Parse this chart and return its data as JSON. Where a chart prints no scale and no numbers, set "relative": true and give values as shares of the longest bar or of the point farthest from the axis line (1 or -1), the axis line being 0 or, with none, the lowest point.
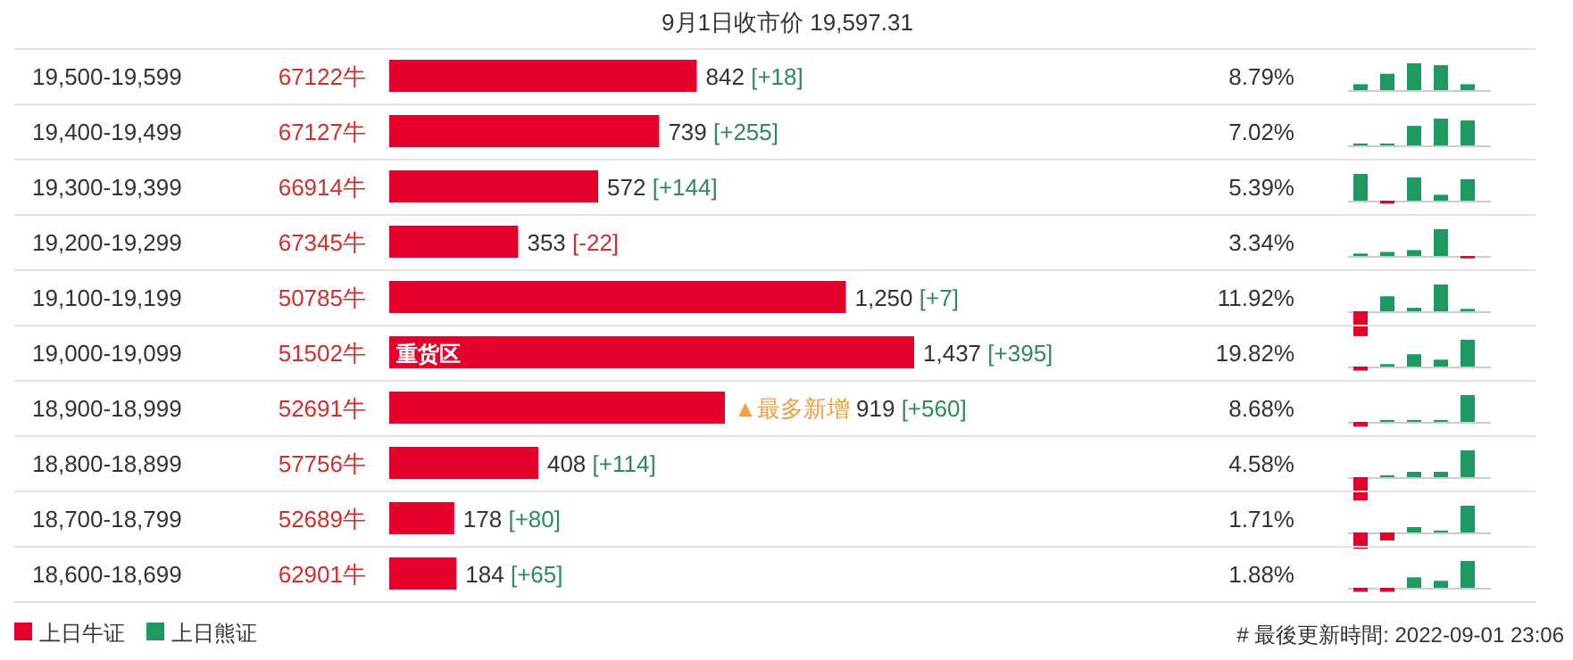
{
  "chart_data": [
    {
      "type": "other",
      "annotations": [
        "67122牛",
        "67127牛",
        "66914牛",
        "67345牛",
        "50785牛",
        "51502牛",
        "52691牛",
        "57756牛",
        "52689牛",
        "62901牛"
      ]
    },
    {
      "type": "bar",
      "orientation": "horizontal",
      "title": "9月1日收市价 19,597.31",
      "categories": [
        "19,500-19,599",
        "19,400-19,499",
        "19,300-19,399",
        "19,200-19,299",
        "19,100-19,199",
        "19,000-19,099",
        "18,900-18,999",
        "18,800-18,899",
        "18,700-18,799",
        "18,600-18,699"
      ],
      "values": [
        842,
        739,
        572,
        353,
        1250,
        1437,
        919,
        408,
        178,
        184
      ],
      "color": "#e4002b",
      "value_labels": [
        "842 [+18]",
        "739 [+255]",
        "572 [+144]",
        "353 [-22]",
        "1,250 [+7]",
        "1,437 [+395]",
        "▲最多新增 919 [+560]",
        "408 [+114]",
        "178 [+80]",
        "184 [+65]"
      ],
      "annotations": [
        {
          "text": "重货区",
          "x": 0,
          "y": "19,000-19,099"
        },
        "# 最後更新時間: 2022-09-01 23:06"
      ]
    },
    {
      "type": "other",
      "annotations": [
        "8.79%",
        "7.02%",
        "5.39%",
        "3.34%",
        "11.92%",
        "19.82%",
        "8.68%",
        "4.58%",
        "1.71%",
        "1.88%"
      ]
    },
    {
      "type": "bar",
      "relative": true,
      "categories": [
        null,
        null,
        null,
        null,
        null
      ],
      "values": [
        0.22,
        0.61,
        1,
        0.93,
        0.22
      ],
      "colors": [
        "#1e9960",
        "#1e9960",
        "#1e9960",
        "#1e9960",
        "#1e9960"
      ]
    },
    {
      "type": "bar",
      "relative": true,
      "categories": [
        null,
        null,
        null,
        null,
        null
      ],
      "values": [
        0.07,
        0.07,
        0.73,
        1,
        0.93
      ],
      "colors": [
        "#1e9960",
        "#1e9960",
        "#1e9960",
        "#1e9960",
        "#1e9960"
      ]
    },
    {
      "type": "bar",
      "relative": true,
      "categories": [
        null,
        null,
        null,
        null,
        null
      ],
      "values": [
        1,
        -0.11,
        0.87,
        0.22,
        0.8
      ],
      "colors": [
        "#1e9960",
        "#e4002b",
        "#1e9960",
        "#1e9960",
        "#1e9960"
      ]
    },
    {
      "type": "bar",
      "relative": true,
      "categories": [
        null,
        null,
        null,
        null,
        null
      ],
      "values": [
        0.09,
        0.15,
        0.22,
        1,
        -0.09
      ],
      "colors": [
        "#1e9960",
        "#1e9960",
        "#1e9960",
        "#1e9960",
        "#e4002b"
      ]
    },
    {
      "type": "bar",
      "relative": true,
      "categories": [
        null,
        null,
        null,
        null,
        null
      ],
      "values": [
        -0.93,
        0.56,
        0.13,
        1,
        0.09
      ],
      "colors": [
        "#e4002b",
        "#1e9960",
        "#1e9960",
        "#1e9960",
        "#1e9960"
      ]
    },
    {
      "type": "bar",
      "relative": true,
      "categories": [
        null,
        null,
        null,
        null,
        null
      ],
      "values": [
        -0.15,
        0.09,
        0.46,
        0.26,
        1
      ],
      "colors": [
        "#e4002b",
        "#1e9960",
        "#1e9960",
        "#1e9960",
        "#1e9960"
      ]
    },
    {
      "type": "bar",
      "relative": true,
      "categories": [
        null,
        null,
        null,
        null,
        null
      ],
      "values": [
        -0.18,
        0.07,
        0.07,
        0.07,
        1
      ],
      "colors": [
        "#e4002b",
        "#1e9960",
        "#1e9960",
        "#1e9960",
        "#1e9960"
      ]
    },
    {
      "type": "bar",
      "relative": true,
      "categories": [
        null,
        null,
        null,
        null,
        null
      ],
      "values": [
        -0.87,
        0.07,
        0.2,
        0.2,
        1
      ],
      "colors": [
        "#e4002b",
        "#1e9960",
        "#1e9960",
        "#1e9960",
        "#1e9960"
      ]
    },
    {
      "type": "bar",
      "relative": true,
      "categories": [
        null,
        null,
        null,
        null,
        null
      ],
      "values": [
        -0.61,
        -0.3,
        0.2,
        0.07,
        1
      ],
      "colors": [
        "#e4002b",
        "#e4002b",
        "#1e9960",
        "#1e9960",
        "#1e9960"
      ]
    },
    {
      "type": "bar",
      "relative": true,
      "categories": [
        null,
        null,
        null,
        null,
        null
      ],
      "values": [
        -0.15,
        -0.15,
        0.39,
        0.26,
        1
      ],
      "colors": [
        "#e4002b",
        "#e4002b",
        "#1e9960",
        "#1e9960",
        "#1e9960"
      ]
    },
    {
      "type": "other",
      "annotations": [
        "上日牛证",
        "上日熊证"
      ]
    }
  ]
}
